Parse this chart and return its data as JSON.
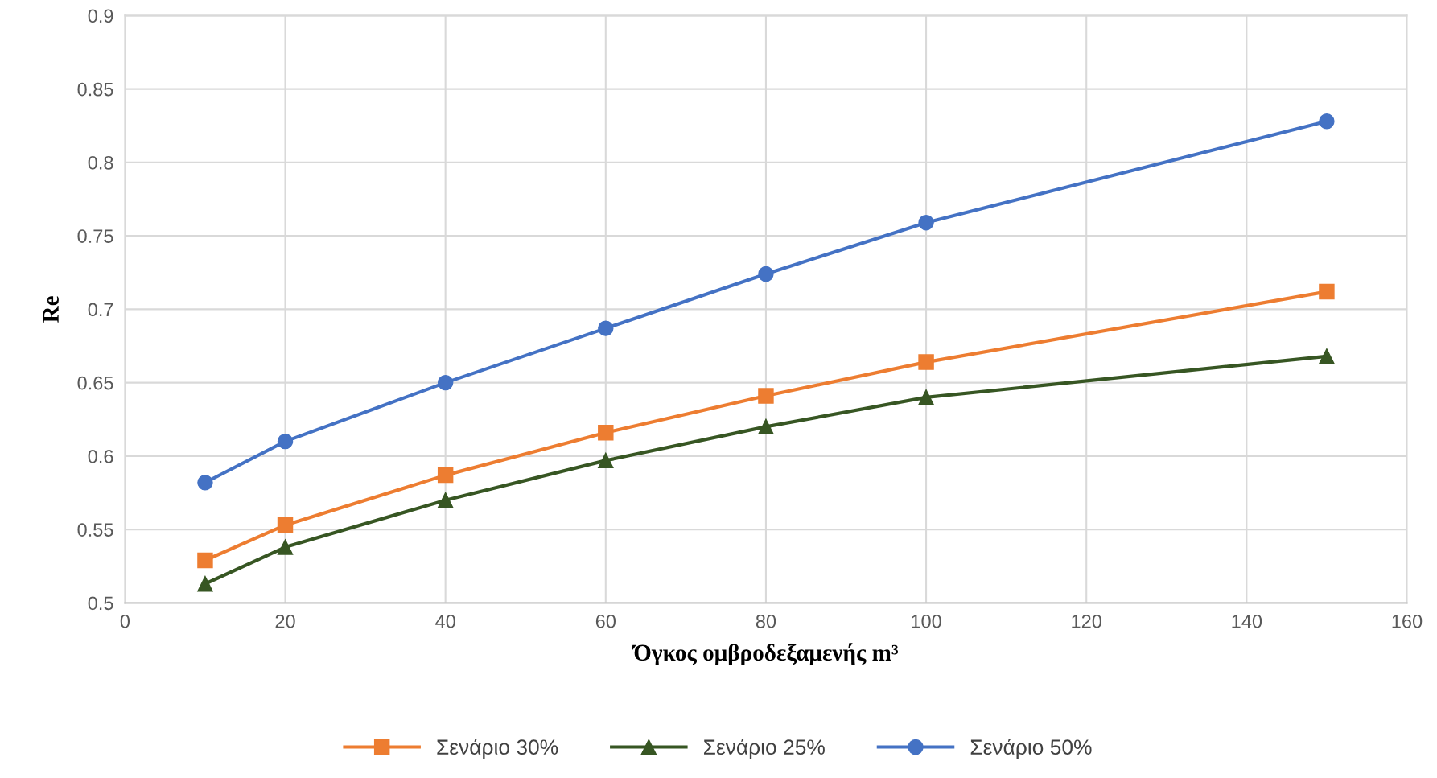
{
  "chart_data": {
    "type": "line",
    "xlabel": "Όγκος ομβροδεξαμενής m³",
    "ylabel": "Re",
    "x": [
      10,
      20,
      40,
      60,
      80,
      100,
      150
    ],
    "series": [
      {
        "name": "Σενάριο 30%",
        "color": "#ed7d31",
        "marker": "square",
        "values": [
          0.529,
          0.553,
          0.587,
          0.616,
          0.641,
          0.664,
          0.712
        ]
      },
      {
        "name": "Σενάριο 25%",
        "color": "#375623",
        "marker": "triangle",
        "values": [
          0.513,
          0.538,
          0.57,
          0.597,
          0.62,
          0.64,
          0.668
        ]
      },
      {
        "name": "Σενάριο 50%",
        "color": "#4472c4",
        "marker": "circle",
        "values": [
          0.582,
          0.61,
          0.65,
          0.687,
          0.724,
          0.759,
          0.828
        ]
      }
    ],
    "xlim": [
      0,
      160
    ],
    "xticks": [
      0,
      20,
      40,
      60,
      80,
      100,
      120,
      140,
      160
    ],
    "ylim": [
      0.5,
      0.9
    ],
    "yticks": [
      0.5,
      0.55,
      0.6,
      0.65,
      0.7,
      0.75,
      0.8,
      0.85,
      0.9
    ],
    "grid": true,
    "legend": "bottom",
    "line_style": "solid"
  }
}
